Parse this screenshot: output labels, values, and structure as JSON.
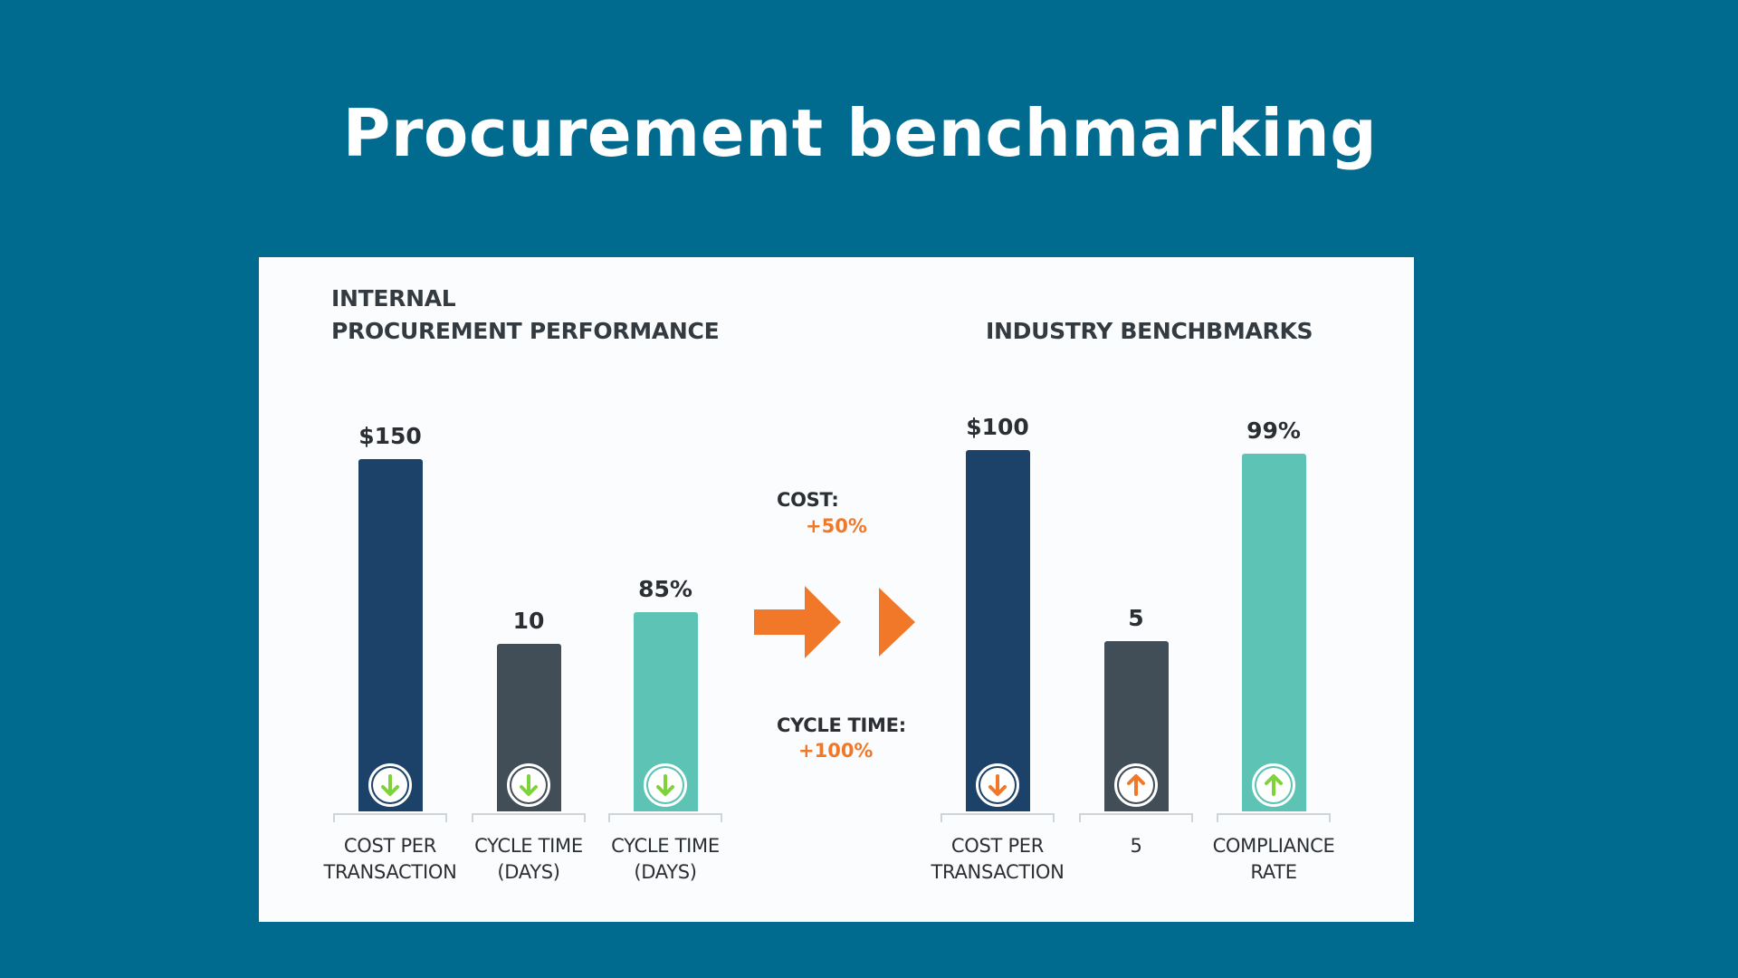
{
  "slide": {
    "title": "Procurement benchmarking"
  },
  "colors": {
    "background": "#016b8f",
    "panel": "#fbfcfd",
    "navy": "#1c4269",
    "slate": "#414d57",
    "teal": "#5dc3b5",
    "accent_orange": "#f07828",
    "icon_green": "#7fd33a",
    "icon_orange": "#f07828"
  },
  "comparison": {
    "cost_label": "COST:",
    "cost_value": "+50%",
    "cycle_label": "CYCLE TIME:",
    "cycle_value": "+100%"
  },
  "chart_data": [
    {
      "type": "bar",
      "title": "INTERNAL PROCUREMENT PERFORMANCE",
      "title_lines": [
        "INTERNAL",
        "PROCUREMENT PERFORMANCE"
      ],
      "categories": [
        "COST PER TRANSACTION",
        "CYCLE TIME (DAYS)",
        "CYCLE TIME (DAYS)"
      ],
      "category_lines": [
        [
          "COST PER",
          "TRANSACTION"
        ],
        [
          "CYCLE TIME",
          "(DAYS)"
        ],
        [
          "CYCLE TIME",
          "(DAYS)"
        ]
      ],
      "values": [
        150,
        10,
        85
      ],
      "value_labels": [
        "$150",
        "10",
        "85%"
      ],
      "colors": [
        "#1c4269",
        "#414d57",
        "#5dc3b5"
      ],
      "icons": [
        "arrow-down-icon",
        "arrow-down-icon",
        "arrow-down-icon"
      ],
      "icon_colors": [
        "#7fd33a",
        "#7fd33a",
        "#7fd33a"
      ],
      "grid": false,
      "legend": "none"
    },
    {
      "type": "bar",
      "title": "INDUSTRY BENCHBMARKS",
      "title_lines": [
        "INDUSTRY BENCHBMARKS"
      ],
      "categories": [
        "COST PER TRANSACTION",
        "5",
        "COMPLIANCE RATE"
      ],
      "category_lines": [
        [
          "COST PER",
          "TRANSACTION"
        ],
        [
          "5"
        ],
        [
          "COMPLIANCE",
          "RATE"
        ]
      ],
      "values": [
        100,
        5,
        99
      ],
      "value_labels": [
        "$100",
        "5",
        "99%"
      ],
      "colors": [
        "#1c4269",
        "#414d57",
        "#5dc3b5"
      ],
      "icons": [
        "arrow-down-icon",
        "arrow-up-icon",
        "arrow-up-icon"
      ],
      "icon_colors": [
        "#f07828",
        "#f07828",
        "#7fd33a"
      ],
      "grid": false,
      "legend": "none"
    }
  ]
}
